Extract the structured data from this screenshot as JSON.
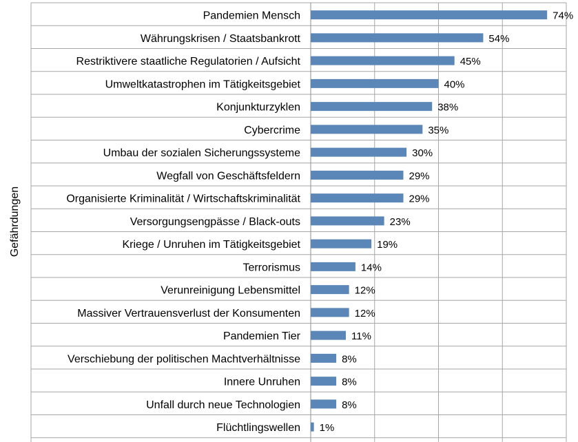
{
  "chart_data": {
    "type": "bar",
    "orientation": "horizontal",
    "ylabel": "Gefährdungen",
    "categories": [
      "Pandemien Mensch",
      "Währungskrisen / Staatsbankrott",
      "Restriktivere staatliche Regulatorien / Aufsicht",
      "Umweltkatastrophen im Tätigkeitsgebiet",
      "Konjunkturzyklen",
      "Cybercrime",
      "Umbau der sozialen Sicherungssysteme",
      "Wegfall von Geschäftsfeldern",
      "Organisierte Kriminalität / Wirtschaftskriminalität",
      "Versorgungsengpässe / Black-outs",
      "Kriege / Unruhen im Tätigkeitsgebiet",
      "Terrorismus",
      "Verunreinigung Lebensmittel",
      "Massiver Vertrauensverlust der Konsumenten",
      "Pandemien Tier",
      "Verschiebung der politischen Machtverhältnisse",
      "Innere Unruhen",
      "Unfall durch neue Technologien",
      "Flüchtlingswellen"
    ],
    "values": [
      74,
      54,
      45,
      40,
      38,
      35,
      30,
      29,
      29,
      23,
      19,
      14,
      12,
      12,
      11,
      8,
      8,
      8,
      1
    ],
    "value_labels": [
      "74%",
      "54%",
      "45%",
      "40%",
      "38%",
      "35%",
      "30%",
      "29%",
      "29%",
      "23%",
      "19%",
      "14%",
      "12%",
      "12%",
      "11%",
      "8%",
      "8%",
      "8%",
      "1%"
    ],
    "xlim": [
      0,
      80
    ],
    "grid": true,
    "bar_color": "#5b87b8"
  }
}
